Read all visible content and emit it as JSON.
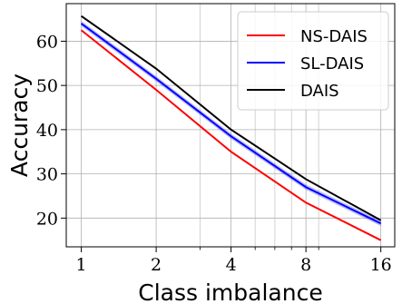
{
  "chart_data": {
    "type": "line",
    "xlabel": "Class imbalance",
    "ylabel": "Accuracy",
    "x_scale": "log2",
    "xlim": [
      0.87,
      18.2
    ],
    "ylim": [
      13.5,
      68.5
    ],
    "grid": true,
    "legend_position": "top-right",
    "xticks": [
      1,
      2,
      4,
      8,
      16
    ],
    "xtick_labels": [
      "1",
      "2",
      "4",
      "8",
      "16"
    ],
    "yticks": [
      20,
      30,
      40,
      50,
      60
    ],
    "ytick_labels": [
      "20",
      "30",
      "40",
      "50",
      "60"
    ],
    "x": [
      1,
      2,
      4,
      8,
      16
    ],
    "series": [
      {
        "name": "NS-DAIS",
        "color": "#ff0000",
        "values": [
          62.5,
          49.0,
          35.0,
          23.5,
          15.0
        ]
      },
      {
        "name": "SL-DAIS",
        "color": "#0000ff",
        "values": [
          64.0,
          51.5,
          38.5,
          27.0,
          18.8
        ],
        "band": 0.6
      },
      {
        "name": "DAIS",
        "color": "#000000",
        "values": [
          65.7,
          53.8,
          40.0,
          28.8,
          19.5
        ]
      }
    ]
  }
}
